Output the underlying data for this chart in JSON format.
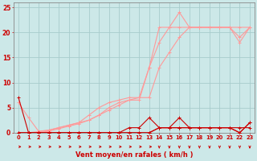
{
  "x": [
    0,
    1,
    2,
    3,
    4,
    5,
    6,
    7,
    8,
    9,
    10,
    11,
    12,
    13,
    14,
    15,
    16,
    17,
    18,
    19,
    20,
    21,
    22,
    23
  ],
  "line_dark1_y": [
    7,
    0,
    0,
    0,
    0,
    0,
    0,
    0,
    0,
    0,
    0,
    0,
    0,
    0,
    1,
    1,
    1,
    1,
    1,
    1,
    1,
    1,
    0,
    2
  ],
  "line_dark2_y": [
    0,
    0,
    0,
    0,
    0,
    0,
    0,
    0,
    0,
    0,
    0,
    0,
    0,
    0,
    1,
    1,
    1,
    1,
    1,
    1,
    1,
    1,
    1,
    1
  ],
  "line_dark3_y": [
    0,
    0,
    0,
    0,
    0,
    0,
    0,
    0,
    0,
    0,
    0,
    1,
    1,
    3,
    1,
    1,
    3,
    1,
    1,
    1,
    1,
    1,
    0,
    2
  ],
  "line_light1_y": [
    6,
    3,
    0.3,
    0.5,
    1,
    1.5,
    2,
    3.5,
    5,
    6,
    6.5,
    7,
    7,
    13,
    21,
    21,
    24,
    21,
    21,
    21,
    21,
    21,
    19,
    21
  ],
  "line_light2_y": [
    0,
    0,
    0.2,
    0.5,
    1,
    1.5,
    2,
    2.5,
    3.5,
    5,
    6,
    6.5,
    6.5,
    13,
    18,
    21,
    21,
    21,
    21,
    21,
    21,
    21,
    18,
    21
  ],
  "line_light3_y": [
    0,
    0,
    0,
    0.3,
    0.8,
    1.3,
    1.8,
    2.5,
    3.5,
    4.5,
    5.5,
    6.5,
    7,
    7,
    13,
    16,
    19,
    21,
    21,
    21,
    21,
    21,
    21,
    21
  ],
  "arrows_right": [
    0,
    1,
    2,
    3,
    4,
    5,
    6,
    7,
    8,
    9,
    10,
    11,
    12,
    13
  ],
  "arrows_down": [
    14,
    15,
    16,
    17,
    18,
    19,
    20,
    21,
    22,
    23
  ],
  "xlabel": "Vent moyen/en rafales ( km/h )",
  "yticks": [
    0,
    5,
    10,
    15,
    20,
    25
  ],
  "ylim": [
    0,
    26
  ],
  "xlim_min": -0.5,
  "xlim_max": 23.5,
  "bg_color": "#cce8e8",
  "grid_color": "#a8cccc",
  "color_dark": "#cc0000",
  "color_light": "#ff9999"
}
